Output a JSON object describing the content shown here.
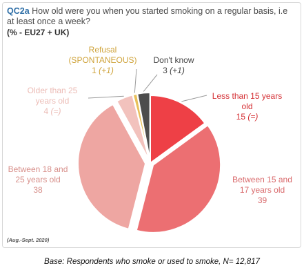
{
  "question": {
    "code": "QC2a",
    "text": "How old were you when you started smoking on a regular basis, i.e at least once a week?",
    "scope": "(% - EU27 + UK)"
  },
  "period": "(Aug.-Sept. 2020)",
  "footer": "Base: Respondents who smoke or used to smoke, N= 12,817",
  "chart_data": {
    "type": "pie",
    "slices": [
      {
        "name": "Less than 15 years old",
        "value": 15,
        "change": "(=)",
        "color": "#ee4046",
        "label_color": "#d42e33"
      },
      {
        "name": "Between 15 and 17 years old",
        "value": 39,
        "change": "",
        "color": "#ec6f72",
        "label_color": "#d96a6c"
      },
      {
        "name": "Between 18 and 25 years old",
        "value": 38,
        "change": "",
        "color": "#eea6a2",
        "label_color": "#d8908b"
      },
      {
        "name": "Older than 25 years old",
        "value": 4,
        "change": "(=)",
        "color": "#f2c2bd",
        "label_color": "#ecbcb6"
      },
      {
        "name": "Refusal (SPONTANEOUS)",
        "value": 1,
        "change": "(+1)",
        "color": "#e8c05a",
        "label_color": "#cfa33a"
      },
      {
        "name": "Don't know",
        "value": 3,
        "change": "(+1)",
        "color": "#4d4d4d",
        "label_color": "#444444"
      }
    ]
  }
}
